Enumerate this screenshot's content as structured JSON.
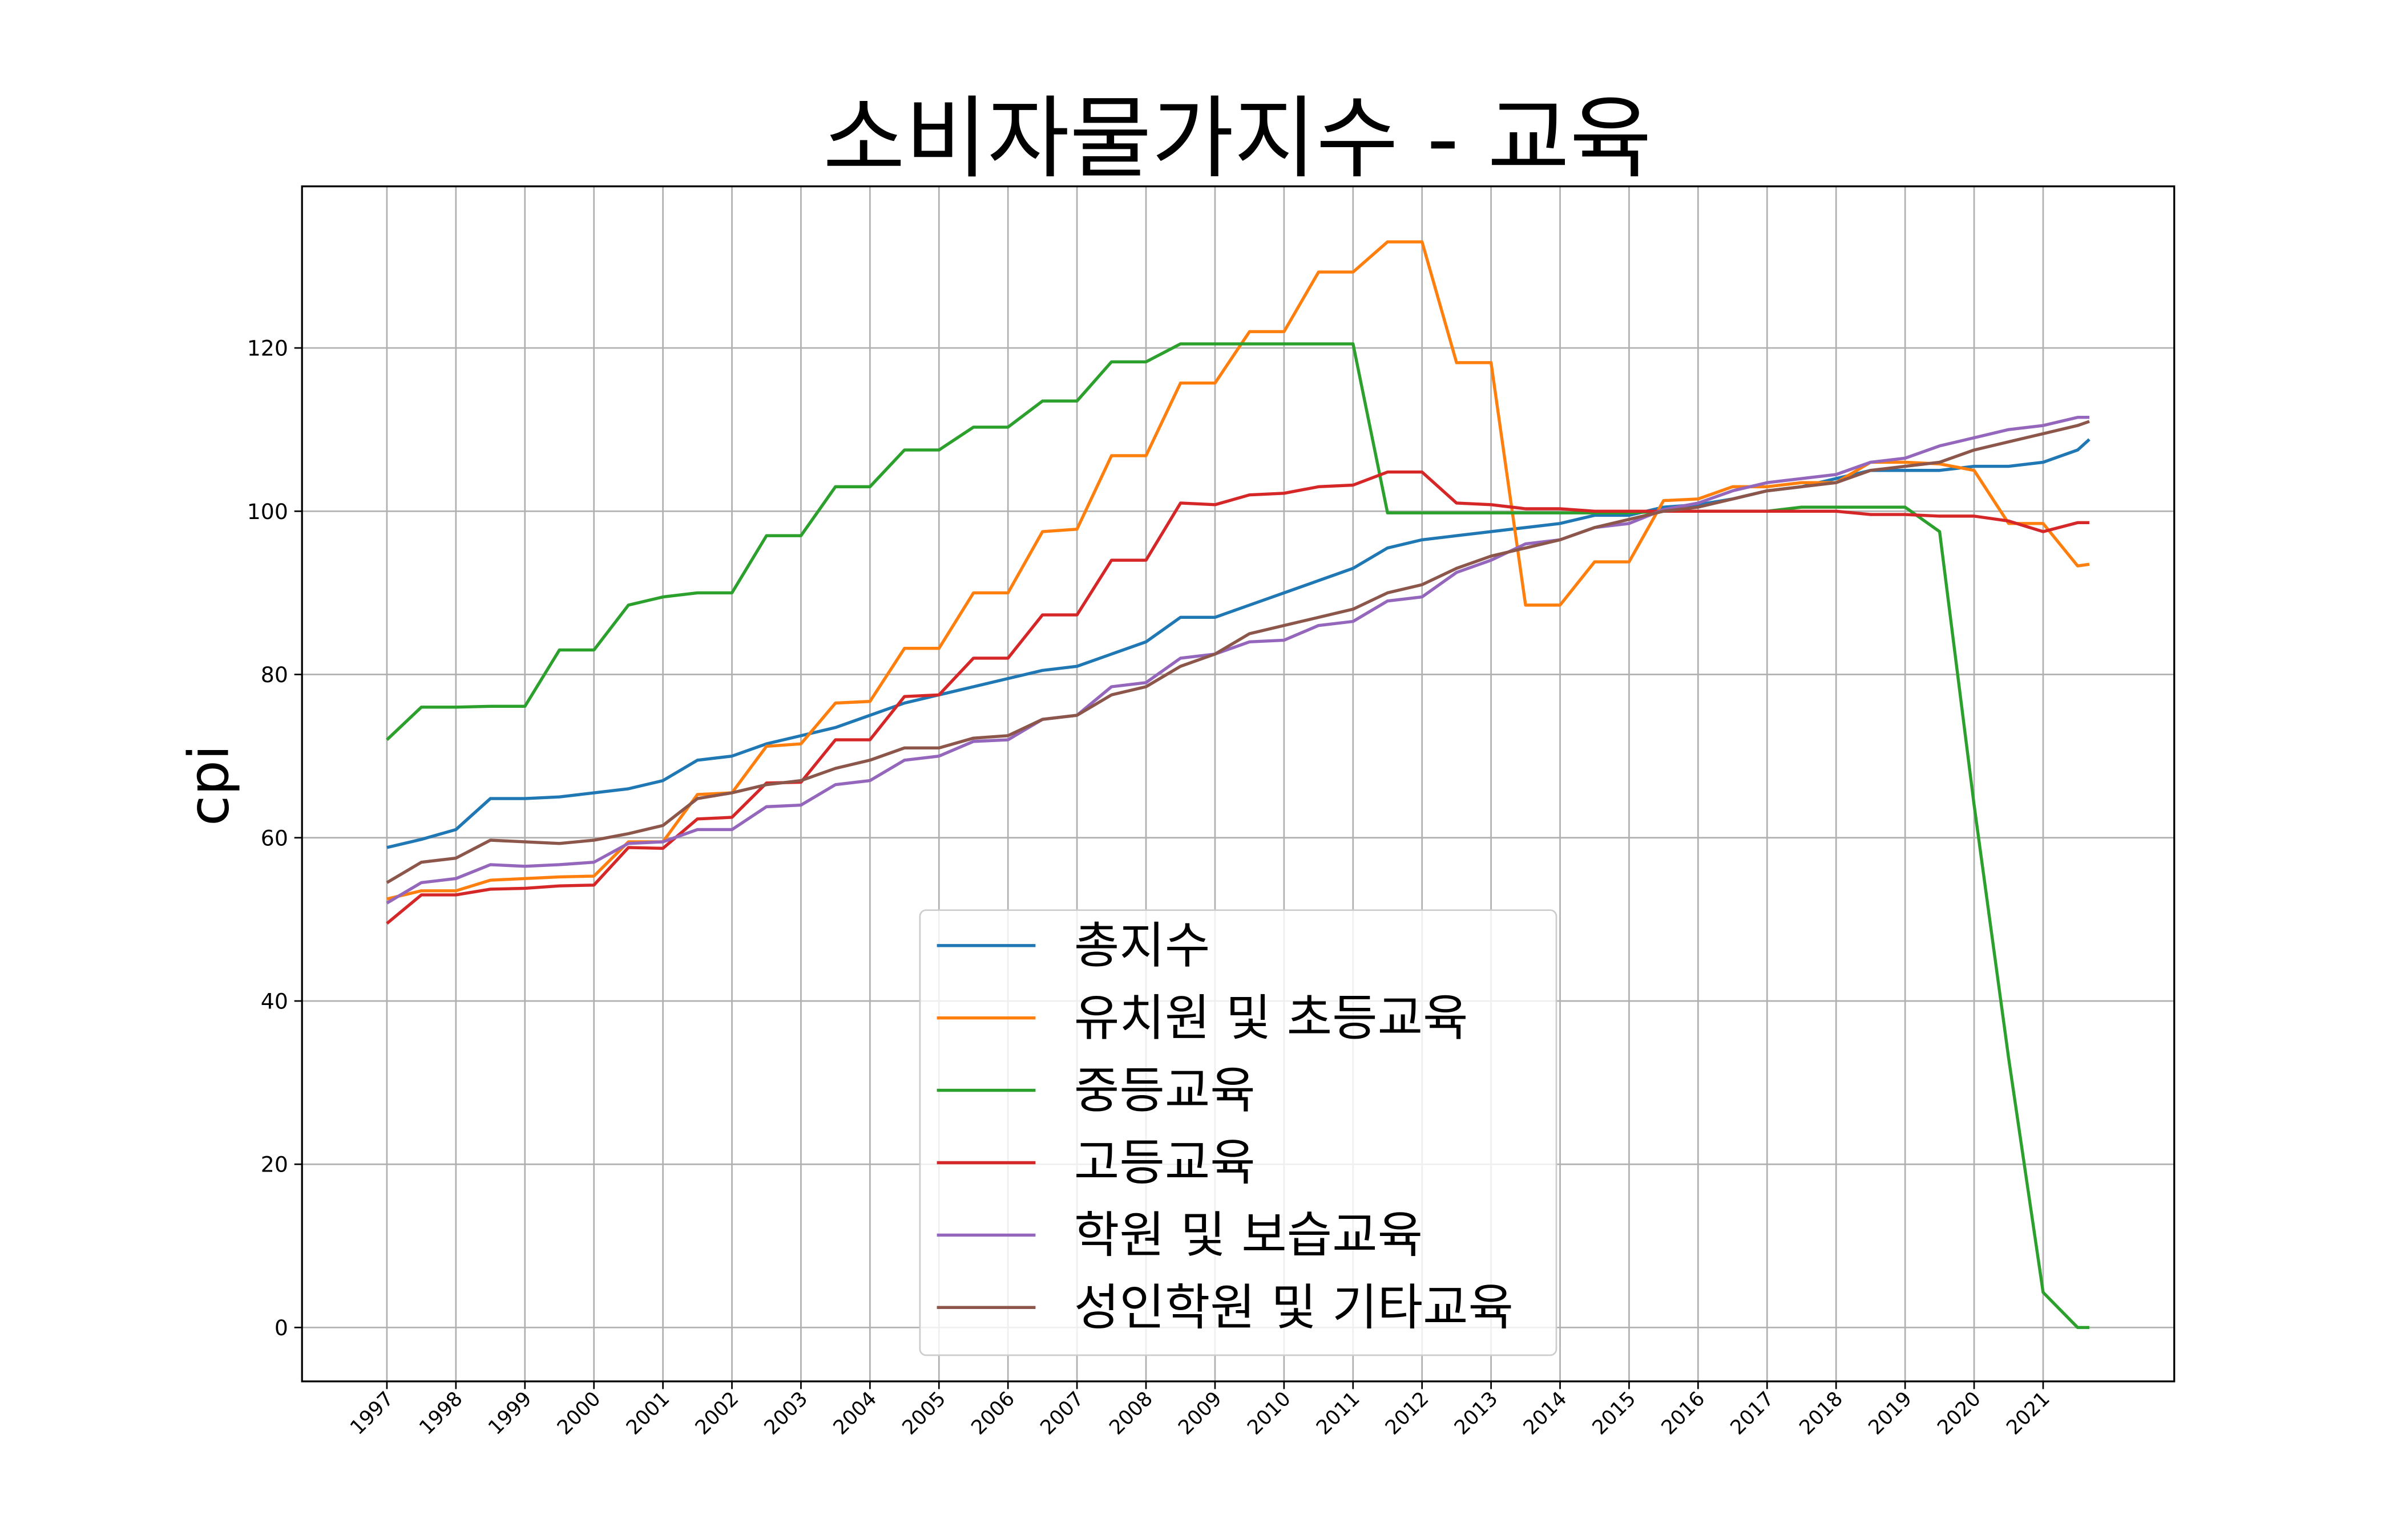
{
  "chart_data": {
    "type": "line",
    "title": "소비자물가지수 - 교육",
    "y_label": "cpi",
    "x": [
      1997,
      1997.5,
      1998,
      1998.5,
      1999,
      1999.5,
      2000,
      2000.5,
      2001,
      2001.5,
      2002,
      2002.5,
      2003,
      2003.5,
      2004,
      2004.5,
      2005,
      2005.5,
      2006,
      2006.5,
      2007,
      2007.5,
      2008,
      2008.5,
      2009,
      2009.5,
      2010,
      2010.5,
      2011,
      2011.5,
      2012,
      2012.5,
      2013,
      2013.5,
      2014,
      2014.5,
      2015,
      2015.5,
      2016,
      2016.5,
      2017,
      2017.5,
      2018,
      2018.5,
      2019,
      2019.5,
      2020,
      2020.5,
      2021,
      2021.5,
      2021.67
    ],
    "xlim": [
      1995.77,
      2022.9
    ],
    "xticks": [
      1997,
      1998,
      1999,
      2000,
      2001,
      2002,
      2003,
      2004,
      2005,
      2006,
      2007,
      2008,
      2009,
      2010,
      2011,
      2012,
      2013,
      2014,
      2015,
      2016,
      2017,
      2018,
      2019,
      2020,
      2021
    ],
    "ylim": [
      -6.6,
      139.8
    ],
    "yticks": [
      0,
      20,
      40,
      60,
      80,
      100,
      120
    ],
    "grid": true,
    "legend_position": "lower center",
    "series": [
      {
        "name": "총지수",
        "color": "#1f77b4",
        "values": [
          58.8,
          59.8,
          61,
          64.8,
          64.8,
          65,
          65.5,
          66,
          67,
          69.5,
          70,
          71.5,
          72.5,
          73.5,
          75,
          76.5,
          77.5,
          78.5,
          79.5,
          80.5,
          81,
          82.5,
          84,
          87,
          87,
          88.5,
          90,
          91.5,
          93,
          95.5,
          96.5,
          97,
          97.5,
          98,
          98.5,
          99.5,
          99.5,
          100.5,
          100.8,
          101.5,
          102.5,
          103,
          104,
          105,
          105,
          105,
          105.5,
          105.5,
          106,
          107.5,
          108.8
        ]
      },
      {
        "name": "유치원 및 초등교육",
        "color": "#ff7f0e",
        "values": [
          52.5,
          53.5,
          53.5,
          54.8,
          55,
          55.2,
          55.3,
          59.5,
          59.5,
          65.3,
          65.5,
          71.2,
          71.5,
          76.5,
          76.7,
          83.2,
          83.2,
          90,
          90,
          97.5,
          97.8,
          106.8,
          106.8,
          115.7,
          115.7,
          122,
          122,
          129.3,
          129.3,
          133,
          133,
          118.2,
          118.2,
          88.5,
          88.5,
          93.8,
          93.8,
          101.3,
          101.5,
          103,
          103,
          103.5,
          103.5,
          106,
          106,
          105.8,
          105,
          98.5,
          98.5,
          93.3,
          93.5
        ]
      },
      {
        "name": "중등교육",
        "color": "#2ca02c",
        "values": [
          72,
          76,
          76,
          76.1,
          76.1,
          83,
          83,
          88.5,
          89.5,
          90,
          90,
          97,
          97,
          103,
          103,
          107.5,
          107.5,
          110.3,
          110.3,
          113.5,
          113.5,
          118.3,
          118.3,
          120.5,
          120.5,
          120.5,
          120.5,
          120.5,
          120.5,
          99.8,
          99.8,
          99.8,
          99.8,
          99.8,
          99.8,
          99.8,
          99.8,
          100,
          100,
          100,
          100,
          100.5,
          100.5,
          100.5,
          100.5,
          97.5,
          64,
          33,
          4.3,
          0,
          0
        ]
      },
      {
        "name": "고등교육",
        "color": "#d62728",
        "values": [
          49.5,
          53,
          53,
          53.7,
          53.8,
          54.1,
          54.2,
          58.8,
          58.7,
          62.3,
          62.5,
          66.7,
          66.8,
          72,
          72,
          77.3,
          77.5,
          82,
          82,
          87.3,
          87.3,
          94,
          94,
          101,
          100.8,
          102,
          102.2,
          103,
          103.2,
          104.8,
          104.8,
          101,
          100.8,
          100.3,
          100.3,
          100,
          100,
          100,
          100,
          100,
          100,
          100,
          100,
          99.6,
          99.6,
          99.4,
          99.4,
          98.8,
          97.5,
          98.6,
          98.6
        ]
      },
      {
        "name": "학원 및 보습교육",
        "color": "#9467bd",
        "values": [
          52,
          54.5,
          55,
          56.7,
          56.5,
          56.7,
          57,
          59.3,
          59.5,
          61,
          61,
          63.8,
          64,
          66.5,
          67,
          69.5,
          70,
          71.8,
          72,
          74.5,
          75,
          78.5,
          79,
          82,
          82.5,
          84,
          84.2,
          86,
          86.5,
          89,
          89.5,
          92.5,
          94,
          96,
          96.5,
          98,
          98.5,
          100.2,
          101,
          102.5,
          103.5,
          104,
          104.5,
          106,
          106.5,
          108,
          109,
          110,
          110.5,
          111.5,
          111.5
        ]
      },
      {
        "name": "성인학원 및 기타교육",
        "color": "#8c564b",
        "values": [
          54.5,
          57,
          57.5,
          59.7,
          59.5,
          59.3,
          59.7,
          60.5,
          61.5,
          64.8,
          65.5,
          66.5,
          67,
          68.5,
          69.5,
          71,
          71,
          72.2,
          72.5,
          74.5,
          75,
          77.5,
          78.5,
          81,
          82.5,
          85,
          86,
          87,
          88,
          90,
          91,
          93,
          94.5,
          95.5,
          96.5,
          98,
          99,
          100,
          100.5,
          101.5,
          102.5,
          103,
          103.5,
          105,
          105.5,
          106,
          107.5,
          108.5,
          109.5,
          110.5,
          111
        ]
      }
    ]
  }
}
